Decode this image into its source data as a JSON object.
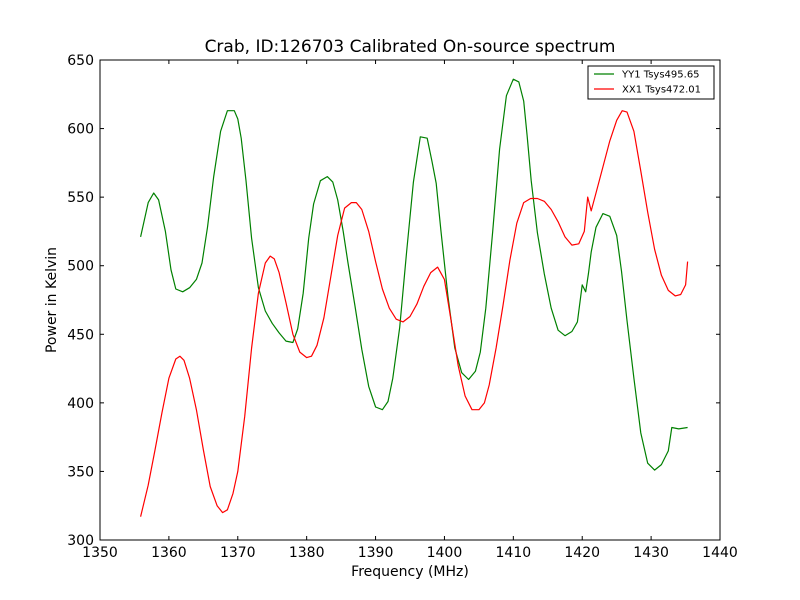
{
  "chart_data": {
    "type": "line",
    "title": "Crab, ID:126703 Calibrated On-source spectrum",
    "xlabel": "Frequency (MHz)",
    "ylabel": "Power in Kelvin",
    "xlim": [
      1350,
      1440
    ],
    "ylim": [
      300,
      650
    ],
    "xticks": [
      1350,
      1360,
      1370,
      1380,
      1390,
      1400,
      1410,
      1420,
      1430,
      1440
    ],
    "yticks": [
      300,
      350,
      400,
      450,
      500,
      550,
      600,
      650
    ],
    "grid": false,
    "legend_position": "top-right",
    "series": [
      {
        "name": "YY1 Tsys495.65",
        "color": "#008000",
        "x": [
          1355.9,
          1357.0,
          1357.8,
          1358.5,
          1359.5,
          1360.3,
          1361.0,
          1362.0,
          1363.0,
          1364.0,
          1364.8,
          1365.6,
          1366.5,
          1367.5,
          1368.5,
          1369.5,
          1370.0,
          1370.5,
          1371.2,
          1372.0,
          1373.0,
          1374.0,
          1375.0,
          1376.0,
          1377.0,
          1378.0,
          1378.7,
          1379.5,
          1380.3,
          1381.0,
          1382.0,
          1383.0,
          1383.8,
          1384.5,
          1385.3,
          1386.0,
          1387.0,
          1388.0,
          1389.0,
          1390.0,
          1391.0,
          1391.8,
          1392.5,
          1393.5,
          1394.5,
          1395.5,
          1396.5,
          1397.5,
          1398.2,
          1398.8,
          1399.5,
          1400.5,
          1401.5,
          1402.5,
          1403.5,
          1404.5,
          1405.2,
          1406.0,
          1407.0,
          1408.0,
          1409.0,
          1410.0,
          1410.8,
          1411.5,
          1412.0,
          1412.6,
          1413.5,
          1414.5,
          1415.5,
          1416.5,
          1417.5,
          1418.5,
          1419.3,
          1420.0,
          1420.5,
          1420.9,
          1421.3,
          1422.0,
          1423.0,
          1424.0,
          1425.0,
          1425.7,
          1426.5,
          1427.5,
          1428.5,
          1429.5,
          1430.5,
          1431.5,
          1432.5,
          1433.0,
          1434.0,
          1435.3
        ],
        "values": [
          521,
          546,
          553,
          548,
          525,
          497,
          483,
          481,
          484,
          490,
          502,
          528,
          565,
          598,
          613,
          613,
          607,
          593,
          562,
          520,
          484,
          467,
          458,
          451,
          445,
          444,
          454,
          480,
          520,
          545,
          562,
          565,
          561,
          548,
          525,
          502,
          471,
          439,
          412,
          397,
          395,
          401,
          418,
          455,
          510,
          561,
          594,
          593,
          576,
          560,
          525,
          478,
          440,
          422,
          417,
          423,
          437,
          469,
          525,
          585,
          624,
          636,
          634,
          620,
          595,
          562,
          524,
          494,
          469,
          453,
          449,
          452,
          459,
          486,
          481,
          494,
          510,
          528,
          538,
          536,
          522,
          496,
          460,
          418,
          378,
          356,
          351,
          355,
          365,
          382,
          381,
          382
        ]
      },
      {
        "name": "XX1 Tsys472.01",
        "color": "#ff0000",
        "x": [
          1355.9,
          1357.0,
          1358.0,
          1359.0,
          1360.0,
          1361.0,
          1361.6,
          1362.2,
          1363.0,
          1364.0,
          1365.0,
          1366.0,
          1367.0,
          1367.8,
          1368.5,
          1369.3,
          1370.0,
          1371.0,
          1372.0,
          1373.0,
          1374.0,
          1374.7,
          1375.3,
          1376.0,
          1377.0,
          1378.0,
          1379.0,
          1380.0,
          1380.7,
          1381.5,
          1382.5,
          1383.5,
          1384.5,
          1385.5,
          1386.5,
          1387.2,
          1388.0,
          1389.0,
          1390.0,
          1391.0,
          1392.0,
          1393.0,
          1394.0,
          1395.0,
          1396.0,
          1397.0,
          1398.0,
          1399.0,
          1400.0,
          1401.0,
          1402.0,
          1403.0,
          1404.0,
          1405.0,
          1405.8,
          1406.5,
          1407.5,
          1408.5,
          1409.5,
          1410.5,
          1411.5,
          1412.5,
          1413.5,
          1414.5,
          1415.5,
          1416.5,
          1417.5,
          1418.5,
          1419.5,
          1420.3,
          1420.8,
          1421.3,
          1422.0,
          1423.0,
          1424.0,
          1425.0,
          1425.8,
          1426.5,
          1427.5,
          1428.5,
          1429.5,
          1430.5,
          1431.5,
          1432.5,
          1433.5,
          1434.3,
          1435.0,
          1435.3
        ],
        "values": [
          317,
          340,
          366,
          393,
          418,
          432,
          434,
          431,
          418,
          395,
          366,
          339,
          325,
          320,
          322,
          334,
          350,
          390,
          440,
          480,
          502,
          507,
          505,
          495,
          473,
          450,
          437,
          433,
          434,
          442,
          462,
          492,
          522,
          542,
          546,
          546,
          541,
          525,
          503,
          483,
          469,
          461,
          459,
          463,
          472,
          485,
          495,
          499,
          490,
          459,
          427,
          405,
          395,
          395,
          400,
          413,
          440,
          471,
          504,
          531,
          546,
          549,
          549,
          547,
          541,
          532,
          521,
          515,
          516,
          525,
          550,
          540,
          553,
          572,
          591,
          606,
          613,
          612,
          598,
          569,
          539,
          512,
          493,
          482,
          478,
          479,
          486,
          503
        ]
      }
    ]
  }
}
